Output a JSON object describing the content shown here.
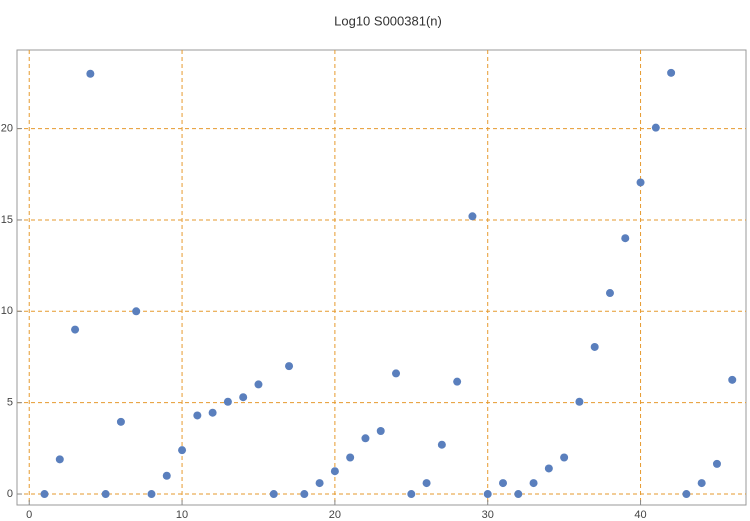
{
  "chart_data": {
    "type": "scatter",
    "title": "Log10 S000381(n)",
    "x": [
      1,
      2,
      3,
      4,
      5,
      6,
      7,
      8,
      9,
      10,
      11,
      12,
      13,
      14,
      15,
      16,
      17,
      18,
      19,
      20,
      21,
      22,
      23,
      24,
      25,
      26,
      27,
      28,
      29,
      30,
      31,
      32,
      33,
      34,
      35,
      36,
      37,
      38,
      39,
      40,
      41,
      42,
      43,
      44,
      45,
      46
    ],
    "values": [
      0,
      1.9,
      9.0,
      23.0,
      0,
      3.95,
      10.0,
      0,
      1.0,
      2.4,
      4.3,
      4.45,
      5.05,
      5.3,
      6.0,
      0,
      7.0,
      0,
      0.6,
      1.25,
      2.0,
      3.05,
      3.45,
      6.6,
      0,
      0.6,
      2.7,
      6.15,
      15.2,
      0,
      0.6,
      0,
      0.6,
      1.4,
      2.0,
      5.05,
      8.05,
      11.0,
      14.0,
      17.05,
      20.05,
      23.05,
      0,
      0.6,
      1.65,
      6.25
    ],
    "color": "#5a7fbd",
    "grid": true,
    "grid_color": "#e69a2e",
    "xlim": [
      -0.8,
      46.9
    ],
    "ylim": [
      -0.6,
      24.3
    ],
    "xticks": [
      0,
      10,
      20,
      30,
      40
    ],
    "yticks": [
      0,
      5,
      10,
      15,
      20
    ]
  }
}
